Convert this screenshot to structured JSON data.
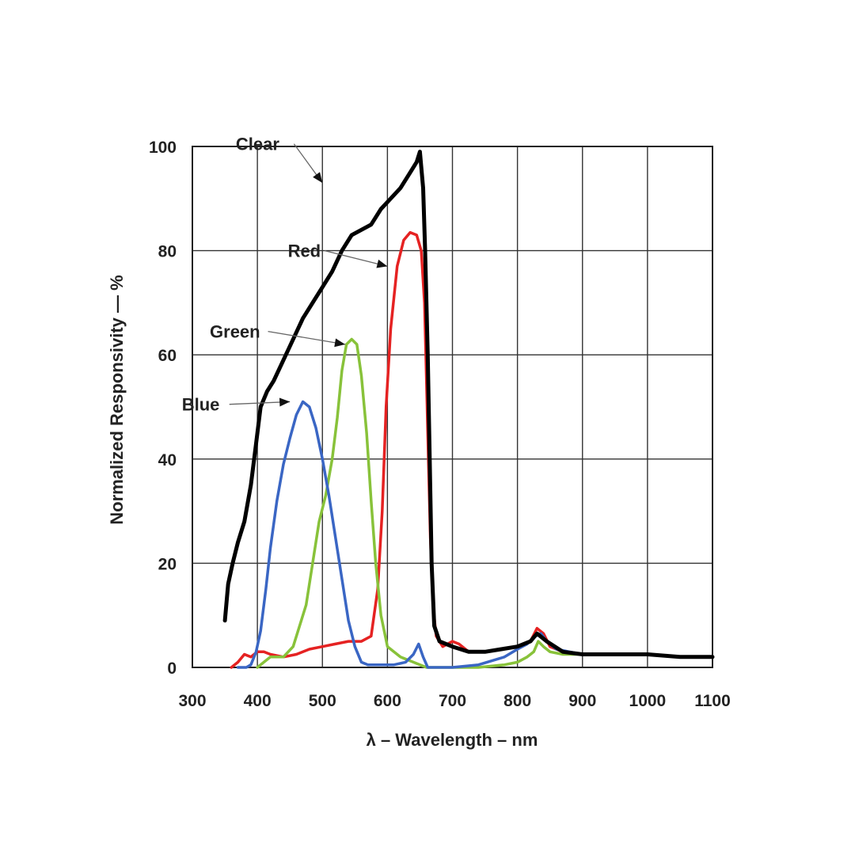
{
  "chart_data": {
    "type": "line",
    "title": "",
    "xlabel": "λ – Wavelength – nm",
    "ylabel": "Normalized Responsivity — %",
    "xlim": [
      300,
      1100
    ],
    "ylim": [
      0,
      100
    ],
    "x_ticks": [
      300,
      400,
      500,
      600,
      700,
      800,
      900,
      1000,
      1100
    ],
    "y_ticks": [
      0,
      20,
      40,
      60,
      80,
      100
    ],
    "grid": true,
    "legend": "callouts",
    "series": [
      {
        "name": "Clear",
        "color": "#000000",
        "label_at": [
          200,
          100.5
        ],
        "arrow_to": [
          500,
          93
        ],
        "points": [
          [
            350,
            9
          ],
          [
            355,
            16
          ],
          [
            362,
            20
          ],
          [
            370,
            24
          ],
          [
            380,
            28
          ],
          [
            390,
            35
          ],
          [
            398,
            43
          ],
          [
            405,
            50
          ],
          [
            415,
            53
          ],
          [
            425,
            55
          ],
          [
            440,
            59
          ],
          [
            455,
            63
          ],
          [
            470,
            67
          ],
          [
            485,
            70
          ],
          [
            500,
            73
          ],
          [
            515,
            76
          ],
          [
            530,
            80
          ],
          [
            545,
            83
          ],
          [
            560,
            84
          ],
          [
            575,
            85
          ],
          [
            590,
            88
          ],
          [
            605,
            90
          ],
          [
            620,
            92
          ],
          [
            635,
            95
          ],
          [
            645,
            97
          ],
          [
            650,
            99
          ],
          [
            655,
            92
          ],
          [
            658,
            80
          ],
          [
            662,
            60
          ],
          [
            665,
            40
          ],
          [
            668,
            20
          ],
          [
            672,
            8
          ],
          [
            680,
            5
          ],
          [
            700,
            4
          ],
          [
            725,
            3
          ],
          [
            750,
            3
          ],
          [
            775,
            3.5
          ],
          [
            800,
            4
          ],
          [
            820,
            5
          ],
          [
            830,
            6.5
          ],
          [
            845,
            5
          ],
          [
            870,
            3
          ],
          [
            900,
            2.5
          ],
          [
            950,
            2.5
          ],
          [
            1000,
            2.5
          ],
          [
            1050,
            2
          ],
          [
            1100,
            2
          ]
        ]
      },
      {
        "name": "Red",
        "color": "#e52222",
        "label_at": [
          280,
          80
        ],
        "arrow_to": [
          600,
          77
        ],
        "points": [
          [
            360,
            0
          ],
          [
            370,
            1
          ],
          [
            380,
            2.5
          ],
          [
            390,
            2
          ],
          [
            400,
            3
          ],
          [
            410,
            3
          ],
          [
            420,
            2.5
          ],
          [
            440,
            2
          ],
          [
            460,
            2.5
          ],
          [
            480,
            3.5
          ],
          [
            500,
            4
          ],
          [
            520,
            4.5
          ],
          [
            540,
            5
          ],
          [
            560,
            5
          ],
          [
            575,
            6
          ],
          [
            585,
            15
          ],
          [
            592,
            30
          ],
          [
            598,
            50
          ],
          [
            605,
            65
          ],
          [
            615,
            77
          ],
          [
            625,
            82
          ],
          [
            635,
            83.5
          ],
          [
            645,
            83
          ],
          [
            652,
            80
          ],
          [
            657,
            70
          ],
          [
            660,
            55
          ],
          [
            663,
            40
          ],
          [
            666,
            25
          ],
          [
            670,
            12
          ],
          [
            675,
            6
          ],
          [
            685,
            4
          ],
          [
            700,
            5
          ],
          [
            710,
            4.5
          ],
          [
            725,
            3
          ],
          [
            750,
            3
          ],
          [
            775,
            3.5
          ],
          [
            800,
            4
          ],
          [
            820,
            5
          ],
          [
            830,
            7.5
          ],
          [
            840,
            6.5
          ],
          [
            850,
            4
          ],
          [
            870,
            3
          ],
          [
            900,
            2.5
          ],
          [
            950,
            2.5
          ],
          [
            1000,
            2.5
          ],
          [
            1050,
            2
          ],
          [
            1100,
            2
          ]
        ]
      },
      {
        "name": "Green",
        "color": "#88c23a",
        "label_at": [
          160,
          64.5
        ],
        "arrow_to": [
          535,
          62
        ],
        "points": [
          [
            400,
            0
          ],
          [
            410,
            1
          ],
          [
            420,
            2
          ],
          [
            440,
            2
          ],
          [
            455,
            4
          ],
          [
            465,
            8
          ],
          [
            475,
            12
          ],
          [
            485,
            20
          ],
          [
            495,
            28
          ],
          [
            505,
            33
          ],
          [
            515,
            40
          ],
          [
            523,
            48
          ],
          [
            530,
            57
          ],
          [
            537,
            62
          ],
          [
            545,
            63
          ],
          [
            553,
            62
          ],
          [
            560,
            56
          ],
          [
            568,
            45
          ],
          [
            575,
            32
          ],
          [
            582,
            20
          ],
          [
            590,
            10
          ],
          [
            600,
            4
          ],
          [
            620,
            2
          ],
          [
            640,
            1
          ],
          [
            660,
            0
          ],
          [
            700,
            0
          ],
          [
            740,
            0
          ],
          [
            780,
            0.5
          ],
          [
            800,
            1
          ],
          [
            815,
            2
          ],
          [
            825,
            3
          ],
          [
            832,
            5
          ],
          [
            840,
            4
          ],
          [
            850,
            3
          ],
          [
            870,
            2.5
          ],
          [
            900,
            2.5
          ],
          [
            950,
            2.5
          ],
          [
            1000,
            2.5
          ],
          [
            1050,
            2
          ],
          [
            1100,
            2
          ]
        ]
      },
      {
        "name": "Blue",
        "color": "#3a66c4",
        "label_at": [
          117,
          50.5
        ],
        "arrow_to": [
          450,
          51
        ],
        "points": [
          [
            370,
            0
          ],
          [
            383,
            0
          ],
          [
            390,
            0.5
          ],
          [
            398,
            3
          ],
          [
            405,
            7
          ],
          [
            413,
            15
          ],
          [
            420,
            23
          ],
          [
            430,
            32
          ],
          [
            440,
            39
          ],
          [
            450,
            44
          ],
          [
            460,
            48.5
          ],
          [
            470,
            51
          ],
          [
            480,
            50
          ],
          [
            490,
            46
          ],
          [
            500,
            40
          ],
          [
            510,
            33
          ],
          [
            520,
            25
          ],
          [
            530,
            17
          ],
          [
            540,
            9
          ],
          [
            550,
            4
          ],
          [
            560,
            1
          ],
          [
            570,
            0.5
          ],
          [
            590,
            0.5
          ],
          [
            610,
            0.5
          ],
          [
            628,
            1
          ],
          [
            640,
            2.5
          ],
          [
            648,
            4.5
          ],
          [
            655,
            2
          ],
          [
            662,
            0
          ],
          [
            700,
            0
          ],
          [
            740,
            0.5
          ],
          [
            780,
            2
          ],
          [
            800,
            3.5
          ],
          [
            815,
            4.5
          ],
          [
            828,
            6
          ],
          [
            836,
            6.5
          ],
          [
            845,
            5
          ],
          [
            860,
            3.5
          ],
          [
            880,
            3
          ],
          [
            900,
            2.5
          ],
          [
            950,
            2.5
          ],
          [
            1000,
            2.5
          ],
          [
            1050,
            2
          ],
          [
            1100,
            2
          ]
        ]
      }
    ]
  }
}
